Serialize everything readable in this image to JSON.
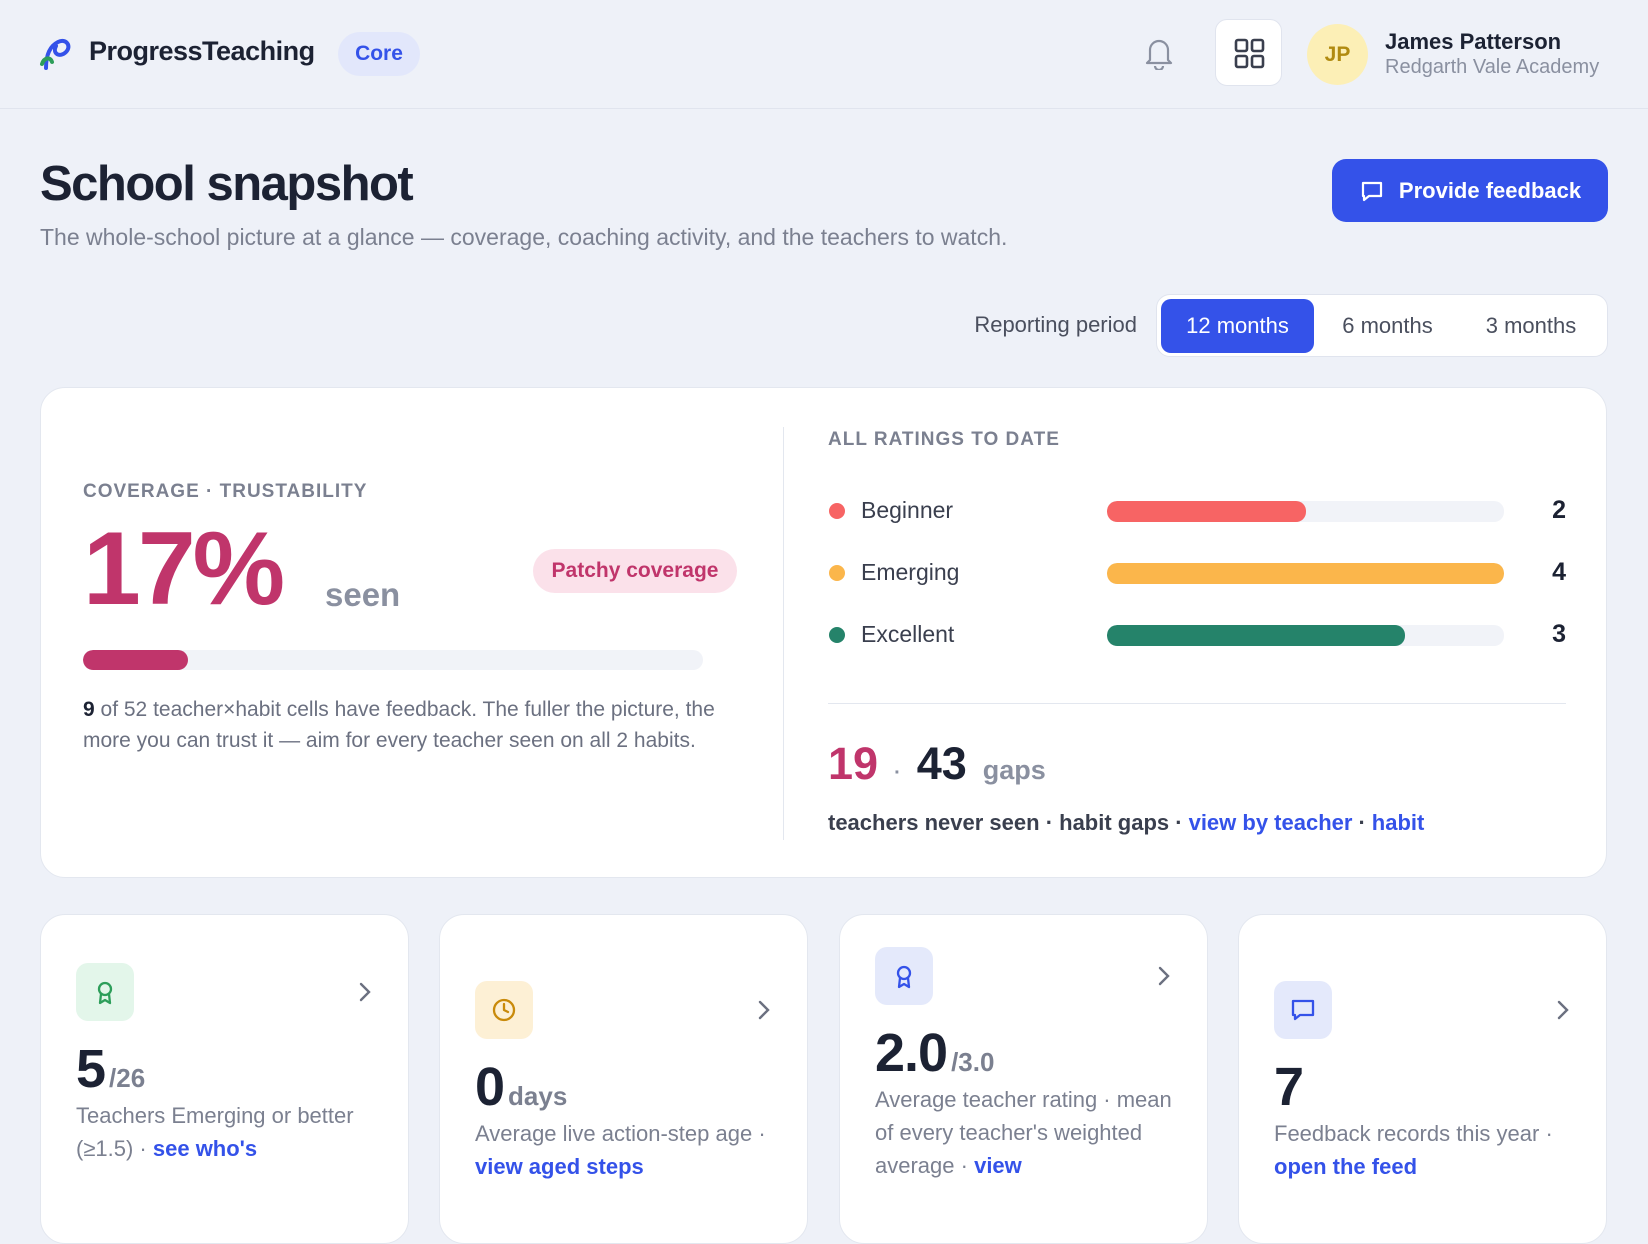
{
  "header": {
    "brand": "ProgressTeaching",
    "plan": "Core",
    "avatar_initials": "JP",
    "user_name": "James Patterson",
    "school": "Redgarth Vale Academy"
  },
  "page": {
    "title": "School snapshot",
    "subtitle": "The whole-school picture at a glance — coverage, coaching activity, and the teachers to watch.",
    "action": "Provide feedback"
  },
  "period": {
    "label": "Reporting period",
    "options": [
      "12 months",
      "6 months",
      "3 months"
    ],
    "selected": 0
  },
  "coverage": {
    "eyebrow": "COVERAGE · TRUSTABILITY",
    "percent": 17,
    "percent_label": "17%",
    "seen_label": "seen",
    "badge": "Patchy coverage",
    "count": "9",
    "description": "of 52 teacher×habit cells have feedback. The fuller the picture, the more you can trust it — aim for every teacher seen on all 2 habits."
  },
  "ratings": {
    "eyebrow": "ALL RATINGS TO DATE",
    "items": [
      {
        "name": "Beginner",
        "value": 2,
        "color": "#f76464"
      },
      {
        "name": "Emerging",
        "value": 4,
        "color": "#fbb64b"
      },
      {
        "name": "Excellent",
        "value": 3,
        "color": "#25836a"
      }
    ]
  },
  "gaps": {
    "never_seen": "19",
    "separator": "·",
    "habit_gaps": "43",
    "gaps_label": "gaps",
    "caption": "teachers never seen · habit gaps ·",
    "links": [
      "view by teacher",
      "habit"
    ]
  },
  "cards": [
    {
      "value": "5",
      "unit": "/26",
      "description": "Teachers Emerging or better (≥1.5) ·",
      "link": "see who's"
    },
    {
      "value": "0",
      "unit": "days",
      "description": "Average live action-step age ·",
      "link": "view aged steps"
    },
    {
      "value": "2.0",
      "unit": "/3.0",
      "description": "Average teacher rating · mean of every teacher's weighted average ·",
      "link": "view"
    },
    {
      "value": "7",
      "unit": null,
      "description": "Feedback records this year ·",
      "link": "open the feed"
    }
  ]
}
